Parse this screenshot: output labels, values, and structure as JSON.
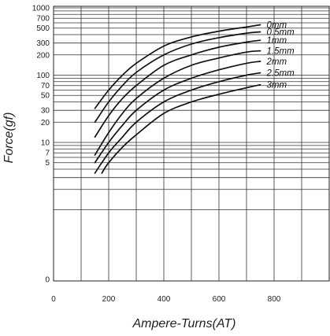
{
  "chart_data": {
    "type": "line",
    "title": "",
    "xlabel": "Ampere-Turns(AT)",
    "ylabel": "Force(gf)",
    "xlim": [
      0,
      1000
    ],
    "x_ticks": [
      "0",
      "200",
      "400",
      "600",
      "800"
    ],
    "y_scale": "log",
    "y_ticks": [
      "1000",
      "700",
      "500",
      "300",
      "200",
      "100",
      "70",
      "50",
      "30",
      "20",
      "10",
      "7",
      "5",
      "0"
    ],
    "grid": true,
    "series": [
      {
        "name": "0mm",
        "x": [
          150,
          200,
          250,
          300,
          400,
          500,
          600,
          700,
          750
        ],
        "y": [
          32,
          60,
          100,
          150,
          270,
          370,
          450,
          520,
          560
        ]
      },
      {
        "name": "0.5mm",
        "x": [
          150,
          200,
          250,
          300,
          400,
          500,
          600,
          700,
          750
        ],
        "y": [
          20,
          40,
          70,
          110,
          200,
          290,
          360,
          420,
          440
        ]
      },
      {
        "name": "1mm",
        "x": [
          150,
          200,
          250,
          300,
          400,
          500,
          600,
          700,
          750
        ],
        "y": [
          12,
          25,
          45,
          70,
          140,
          200,
          260,
          310,
          330
        ]
      },
      {
        "name": "1.5mm",
        "x": [
          150,
          200,
          250,
          300,
          400,
          500,
          600,
          700,
          750
        ],
        "y": [
          6.5,
          14,
          27,
          45,
          90,
          140,
          180,
          220,
          230
        ]
      },
      {
        "name": "2mm",
        "x": [
          150,
          200,
          250,
          300,
          400,
          500,
          600,
          700,
          750
        ],
        "y": [
          5,
          10,
          18,
          30,
          60,
          90,
          120,
          150,
          160
        ]
      },
      {
        "name": "2.5mm",
        "x": [
          150,
          200,
          250,
          300,
          400,
          500,
          600,
          700,
          750
        ],
        "y": [
          3.5,
          7,
          12,
          20,
          40,
          60,
          80,
          100,
          108
        ]
      },
      {
        "name": "3mm",
        "x": [
          175,
          200,
          250,
          300,
          400,
          500,
          600,
          700,
          750
        ],
        "y": [
          3.5,
          5,
          8.5,
          13,
          27,
          40,
          52,
          65,
          72
        ]
      }
    ]
  }
}
